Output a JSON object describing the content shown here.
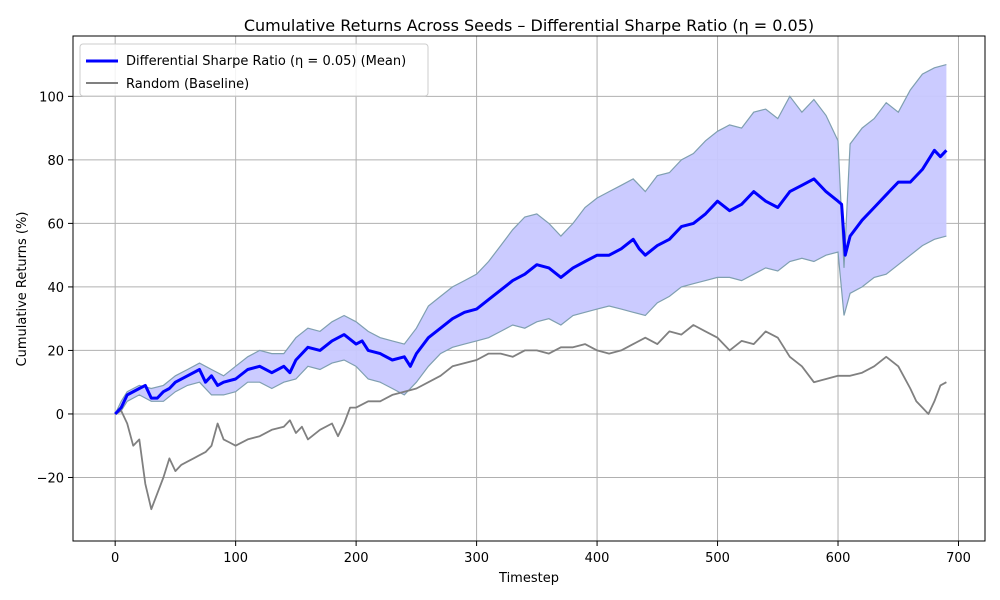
{
  "chart_data": {
    "type": "line",
    "title": "Cumulative Returns Across Seeds – Differential Sharpe Ratio (η = 0.05)",
    "xlabel": "Timestep",
    "ylabel": "Cumulative Returns (%)",
    "xlim": [
      -35,
      722
    ],
    "ylim": [
      -40,
      119
    ],
    "xticks": [
      0,
      100,
      200,
      300,
      400,
      500,
      600,
      700
    ],
    "yticks": [
      -20,
      0,
      20,
      40,
      60,
      80,
      100
    ],
    "xtick_labels": [
      "0",
      "100",
      "200",
      "300",
      "400",
      "500",
      "600",
      "700"
    ],
    "ytick_labels": [
      "−20",
      "0",
      "20",
      "40",
      "60",
      "80",
      "100"
    ],
    "grid": true,
    "legend_position": "top-left",
    "legend": {
      "mean": "Differential Sharpe Ratio (η = 0.05) (Mean)",
      "random": "Random (Baseline)"
    },
    "colors": {
      "mean": "#0000ff",
      "band_fill": "#c8c8ff",
      "band_edge": "#7f9fb0",
      "random": "#808080",
      "grid": "#b0b0b0"
    },
    "series": [
      {
        "name": "Differential Sharpe Ratio (η = 0.05) (Mean)",
        "x": [
          0,
          5,
          10,
          20,
          25,
          30,
          35,
          40,
          45,
          50,
          60,
          70,
          75,
          80,
          85,
          90,
          100,
          110,
          120,
          130,
          140,
          145,
          150,
          160,
          170,
          180,
          190,
          200,
          205,
          210,
          220,
          230,
          240,
          245,
          250,
          260,
          270,
          280,
          290,
          300,
          310,
          320,
          330,
          340,
          350,
          360,
          370,
          380,
          390,
          400,
          410,
          420,
          430,
          435,
          440,
          450,
          460,
          470,
          480,
          490,
          500,
          510,
          520,
          530,
          540,
          550,
          560,
          570,
          580,
          590,
          600,
          603,
          606,
          610,
          620,
          630,
          640,
          650,
          660,
          670,
          680,
          685,
          690
        ],
        "values": [
          0,
          2,
          6,
          8,
          9,
          5,
          5,
          7,
          8,
          10,
          12,
          14,
          10,
          12,
          9,
          10,
          11,
          14,
          15,
          13,
          15,
          13,
          17,
          21,
          20,
          23,
          25,
          22,
          23,
          20,
          19,
          17,
          18,
          15,
          19,
          24,
          27,
          30,
          32,
          33,
          36,
          39,
          42,
          44,
          47,
          46,
          43,
          46,
          48,
          50,
          50,
          52,
          55,
          52,
          50,
          53,
          55,
          59,
          60,
          63,
          67,
          64,
          66,
          70,
          67,
          65,
          70,
          72,
          74,
          70,
          67,
          66,
          50,
          56,
          61,
          65,
          69,
          73,
          73,
          77,
          83,
          81,
          83
        ]
      },
      {
        "name": "upper band",
        "x": [
          0,
          5,
          10,
          20,
          30,
          40,
          50,
          60,
          70,
          80,
          90,
          100,
          110,
          120,
          130,
          140,
          150,
          160,
          170,
          180,
          190,
          200,
          210,
          220,
          230,
          240,
          250,
          260,
          270,
          280,
          290,
          300,
          310,
          320,
          330,
          340,
          350,
          360,
          370,
          380,
          390,
          400,
          410,
          420,
          430,
          440,
          450,
          460,
          470,
          480,
          490,
          500,
          510,
          520,
          530,
          540,
          550,
          560,
          570,
          580,
          590,
          600,
          605,
          610,
          620,
          630,
          640,
          650,
          660,
          670,
          680,
          690
        ],
        "values": [
          0,
          4,
          7,
          9,
          8,
          9,
          12,
          14,
          16,
          14,
          12,
          15,
          18,
          20,
          19,
          19,
          24,
          27,
          26,
          29,
          31,
          29,
          26,
          24,
          23,
          22,
          27,
          34,
          37,
          40,
          42,
          44,
          48,
          53,
          58,
          62,
          63,
          60,
          56,
          60,
          65,
          68,
          70,
          72,
          74,
          70,
          75,
          76,
          80,
          82,
          86,
          89,
          91,
          90,
          95,
          96,
          93,
          100,
          95,
          99,
          94,
          86,
          46,
          85,
          90,
          93,
          98,
          95,
          102,
          107,
          109,
          110
        ]
      },
      {
        "name": "lower band",
        "x": [
          0,
          5,
          10,
          20,
          30,
          40,
          50,
          60,
          70,
          80,
          90,
          100,
          110,
          120,
          130,
          140,
          150,
          160,
          170,
          180,
          190,
          200,
          210,
          220,
          230,
          240,
          250,
          260,
          270,
          280,
          290,
          300,
          310,
          320,
          330,
          340,
          350,
          360,
          370,
          380,
          390,
          400,
          410,
          420,
          430,
          440,
          450,
          460,
          470,
          480,
          490,
          500,
          510,
          520,
          530,
          540,
          550,
          560,
          570,
          580,
          590,
          600,
          605,
          610,
          620,
          630,
          640,
          650,
          660,
          670,
          680,
          690
        ],
        "values": [
          0,
          1,
          4,
          6,
          4,
          4,
          7,
          9,
          10,
          6,
          6,
          7,
          10,
          10,
          8,
          10,
          11,
          15,
          14,
          16,
          17,
          15,
          11,
          10,
          8,
          6,
          10,
          15,
          19,
          21,
          22,
          23,
          24,
          26,
          28,
          27,
          29,
          30,
          28,
          31,
          32,
          33,
          34,
          33,
          32,
          31,
          35,
          37,
          40,
          41,
          42,
          43,
          43,
          42,
          44,
          46,
          45,
          48,
          49,
          48,
          50,
          51,
          31,
          38,
          40,
          43,
          44,
          47,
          50,
          53,
          55,
          56
        ]
      },
      {
        "name": "Random (Baseline)",
        "x": [
          0,
          5,
          10,
          15,
          20,
          25,
          30,
          35,
          40,
          45,
          50,
          55,
          60,
          65,
          70,
          75,
          80,
          85,
          90,
          95,
          100,
          110,
          120,
          130,
          140,
          145,
          150,
          155,
          160,
          170,
          180,
          185,
          190,
          195,
          200,
          210,
          220,
          230,
          240,
          250,
          260,
          270,
          280,
          290,
          300,
          310,
          320,
          330,
          340,
          350,
          360,
          370,
          380,
          390,
          400,
          410,
          420,
          430,
          440,
          450,
          460,
          470,
          480,
          490,
          500,
          510,
          520,
          530,
          540,
          550,
          560,
          570,
          580,
          590,
          600,
          610,
          620,
          630,
          640,
          650,
          660,
          665,
          670,
          675,
          680,
          685,
          690
        ],
        "values": [
          0,
          1,
          -3,
          -10,
          -8,
          -22,
          -30,
          -25,
          -20,
          -14,
          -18,
          -16,
          -15,
          -14,
          -13,
          -12,
          -10,
          -3,
          -8,
          -9,
          -10,
          -8,
          -7,
          -5,
          -4,
          -2,
          -6,
          -4,
          -8,
          -5,
          -3,
          -7,
          -3,
          2,
          2,
          4,
          4,
          6,
          7,
          8,
          10,
          12,
          15,
          16,
          17,
          19,
          19,
          18,
          20,
          20,
          19,
          21,
          21,
          22,
          20,
          19,
          20,
          22,
          24,
          22,
          26,
          25,
          28,
          26,
          24,
          20,
          23,
          22,
          26,
          24,
          18,
          15,
          10,
          11,
          12,
          12,
          13,
          15,
          18,
          15,
          8,
          4,
          2,
          0,
          4,
          9,
          10
        ]
      }
    ]
  }
}
